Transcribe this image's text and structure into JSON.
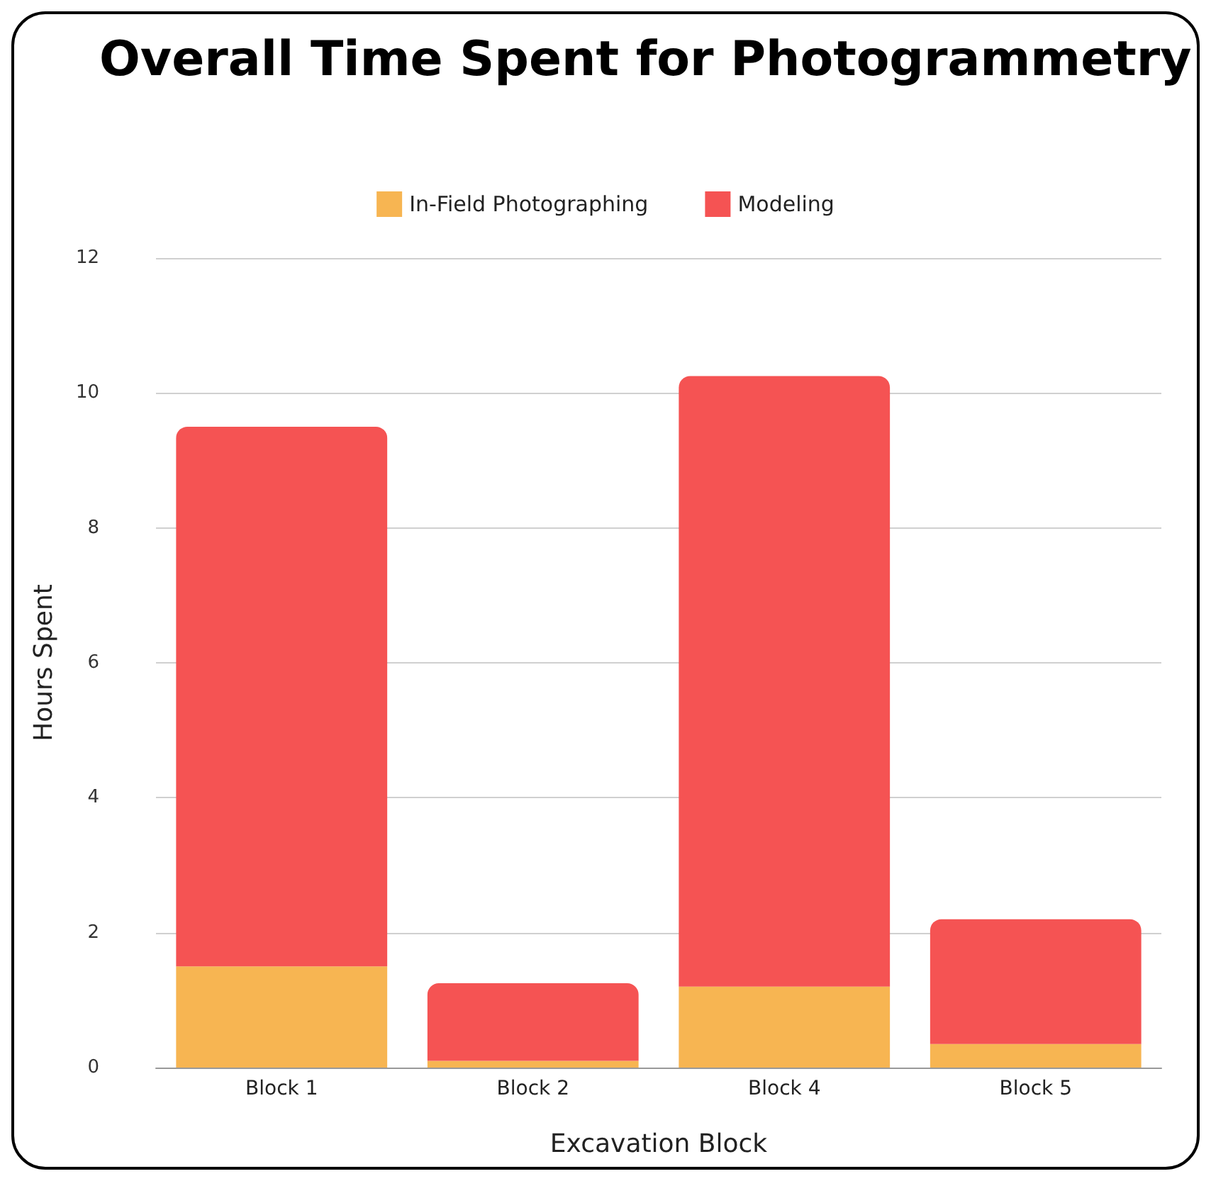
{
  "chart_data": {
    "type": "bar",
    "title": "Overall Time Spent for Photogrammetry",
    "xlabel": "Excavation Block",
    "ylabel": "Hours Spent",
    "categories": [
      "Block 1",
      "Block 2",
      "Block 4",
      "Block 5"
    ],
    "series": [
      {
        "name": "In-Field Photographing",
        "color": "#f7b552",
        "values": [
          1.5,
          0.1,
          1.2,
          0.35
        ]
      },
      {
        "name": "Modeling",
        "color": "#f55353",
        "values": [
          8.0,
          1.15,
          9.05,
          1.85
        ]
      }
    ],
    "stacked": true,
    "ylim": [
      0,
      12
    ],
    "yticks": [
      0,
      2,
      4,
      6,
      8,
      10,
      12
    ],
    "grid": "y",
    "legend": "top"
  }
}
